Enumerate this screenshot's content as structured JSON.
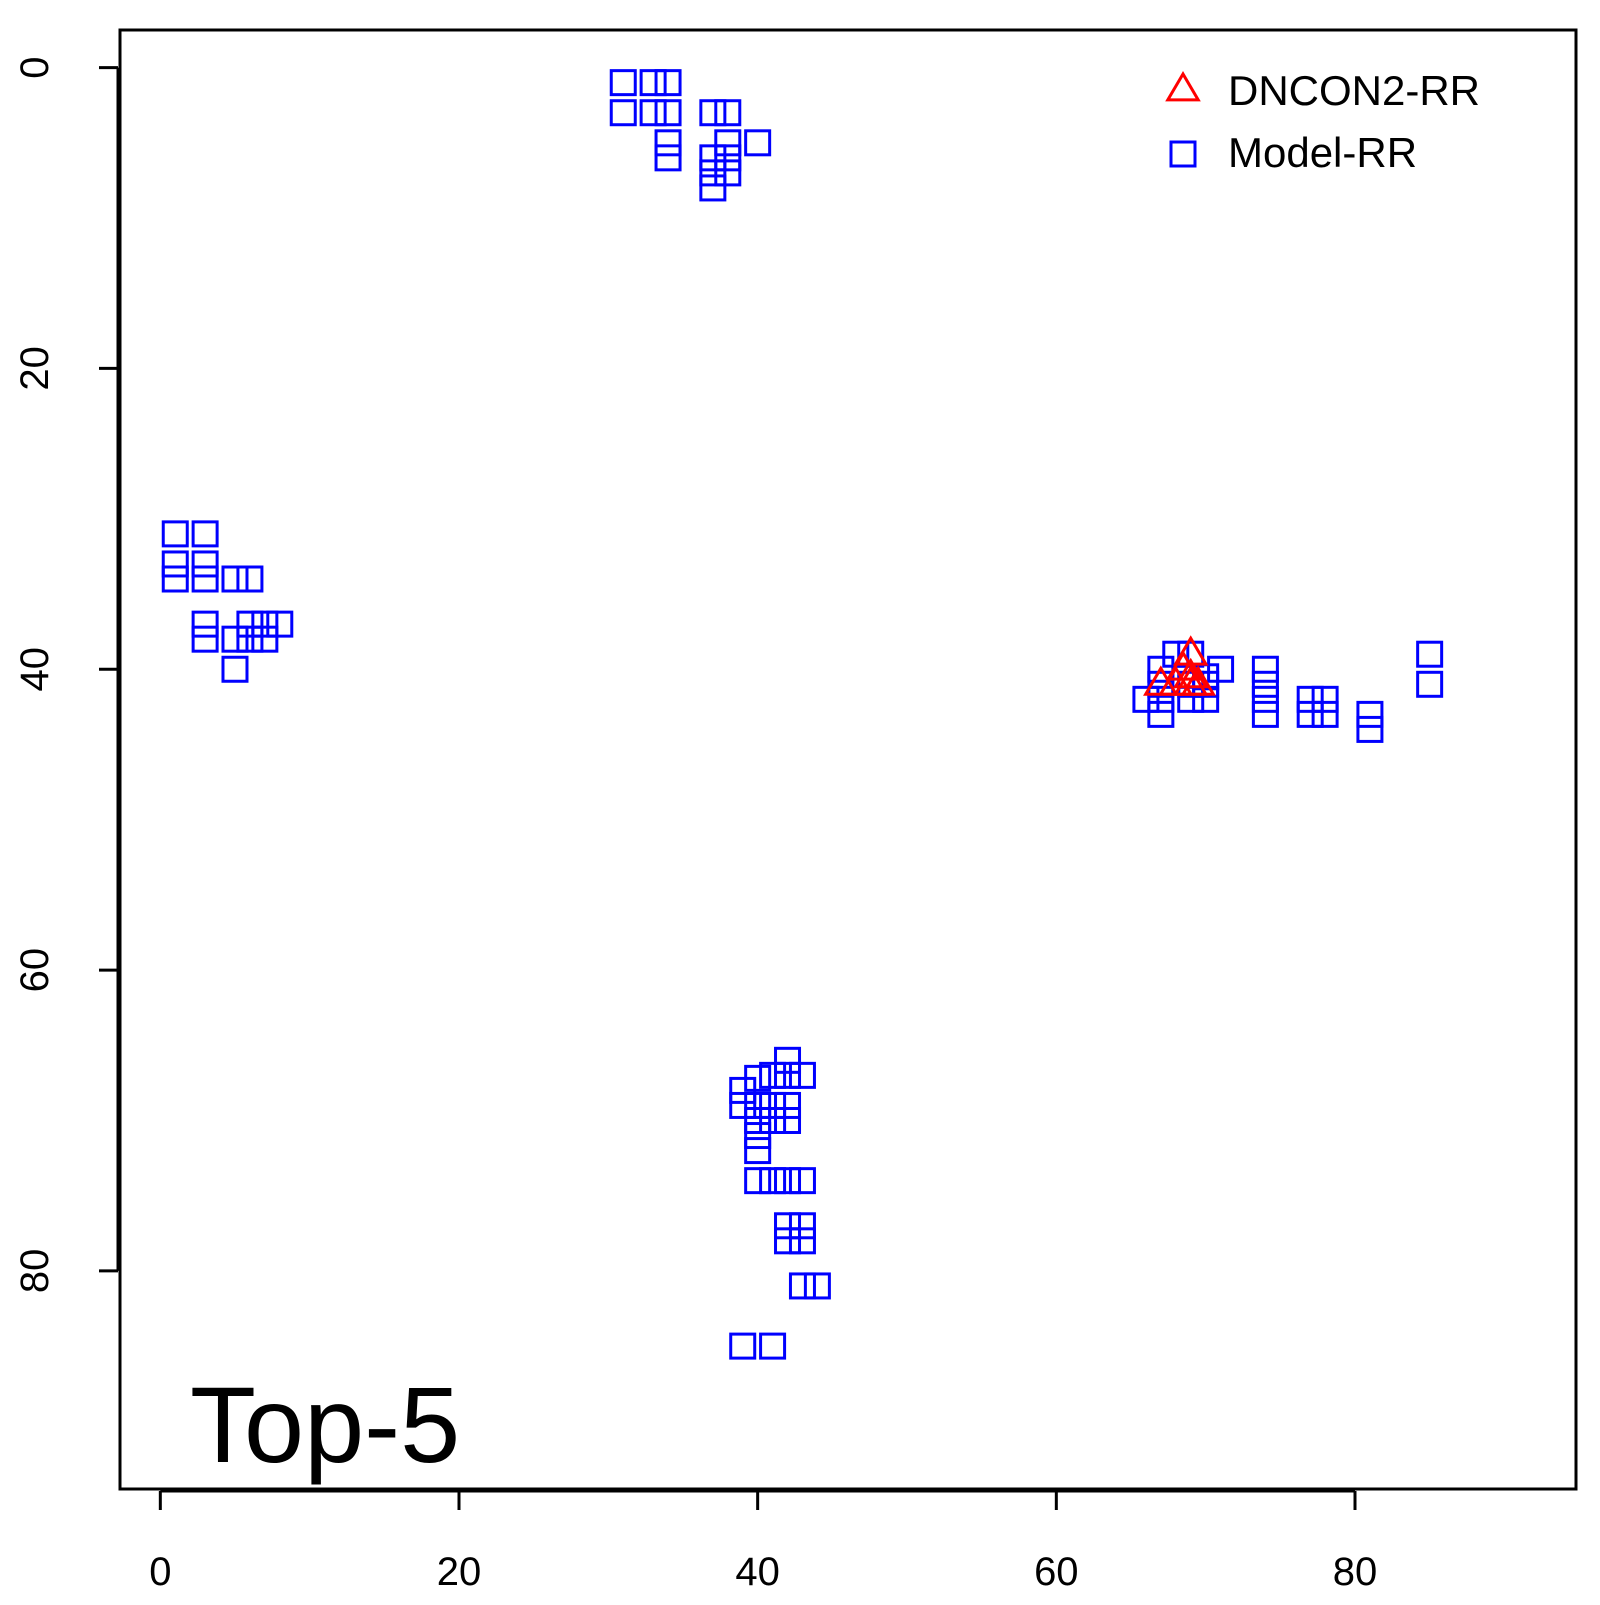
{
  "chart_data": {
    "type": "scatter",
    "panel_label": "Top-5",
    "xlim": [
      -2.7,
      94.8
    ],
    "ylim": [
      -2.5,
      94.5
    ],
    "y_axis_reversed": true,
    "x_ticks": [
      "0",
      "20",
      "40",
      "60",
      "80"
    ],
    "x_tick_values": [
      0,
      20,
      40,
      60,
      80
    ],
    "y_ticks": [
      "0",
      "20",
      "40",
      "60",
      "80"
    ],
    "y_tick_values": [
      0,
      20,
      40,
      60,
      80
    ],
    "legend_position": "top-right",
    "colors": {
      "DNCON2-RR": "#ff0000",
      "Model-RR": "#0000ff"
    },
    "series": [
      {
        "name": "DNCON2-RR",
        "marker": "triangle",
        "color": "#ff0000",
        "points": [
          [
            67,
            41
          ],
          [
            68,
            41
          ],
          [
            68.5,
            40
          ],
          [
            69,
            39
          ],
          [
            69,
            40.5
          ],
          [
            69.5,
            41
          ],
          [
            69,
            41
          ]
        ]
      },
      {
        "name": "Model-RR",
        "marker": "square",
        "color": "#0000ff",
        "points": [
          [
            31,
            1
          ],
          [
            31,
            3
          ],
          [
            33,
            1
          ],
          [
            33,
            3
          ],
          [
            34,
            1
          ],
          [
            34,
            3
          ],
          [
            34,
            5
          ],
          [
            34,
            6
          ],
          [
            37,
            3
          ],
          [
            38,
            3
          ],
          [
            38,
            5
          ],
          [
            40,
            5
          ],
          [
            37,
            6
          ],
          [
            38,
            6
          ],
          [
            37,
            7
          ],
          [
            38,
            7
          ],
          [
            37,
            8
          ],
          [
            1,
            31
          ],
          [
            3,
            31
          ],
          [
            1,
            33
          ],
          [
            3,
            33
          ],
          [
            1,
            34
          ],
          [
            3,
            34
          ],
          [
            5,
            34
          ],
          [
            6,
            34
          ],
          [
            3,
            37
          ],
          [
            6,
            37
          ],
          [
            7,
            37
          ],
          [
            8,
            37
          ],
          [
            3,
            38
          ],
          [
            5,
            38
          ],
          [
            6,
            38
          ],
          [
            7,
            38
          ],
          [
            5,
            40
          ],
          [
            68,
            39
          ],
          [
            69,
            39
          ],
          [
            67,
            40
          ],
          [
            71,
            40
          ],
          [
            70,
            40.5
          ],
          [
            67,
            41
          ],
          [
            69,
            41
          ],
          [
            70,
            41
          ],
          [
            66,
            42
          ],
          [
            67,
            42
          ],
          [
            69,
            42
          ],
          [
            70,
            42
          ],
          [
            67,
            43
          ],
          [
            74,
            40
          ],
          [
            74,
            41
          ],
          [
            74,
            42
          ],
          [
            74,
            43
          ],
          [
            77,
            42
          ],
          [
            78,
            42
          ],
          [
            77,
            43
          ],
          [
            78,
            43
          ],
          [
            81,
            43
          ],
          [
            81,
            44
          ],
          [
            85,
            39
          ],
          [
            85,
            41
          ],
          [
            42,
            66
          ],
          [
            41,
            67
          ],
          [
            42,
            67
          ],
          [
            43,
            67
          ],
          [
            40,
            67.2
          ],
          [
            39,
            68
          ],
          [
            39,
            69
          ],
          [
            40,
            69
          ],
          [
            41,
            69
          ],
          [
            42,
            69
          ],
          [
            40,
            70
          ],
          [
            41,
            70
          ],
          [
            42,
            70
          ],
          [
            40,
            71
          ],
          [
            40,
            72
          ],
          [
            40,
            74
          ],
          [
            41,
            74
          ],
          [
            42,
            74
          ],
          [
            43,
            74
          ],
          [
            42,
            77
          ],
          [
            43,
            77
          ],
          [
            42,
            78
          ],
          [
            43,
            78
          ],
          [
            43,
            81
          ],
          [
            44,
            81
          ],
          [
            39,
            85
          ],
          [
            41,
            85
          ]
        ]
      }
    ]
  }
}
